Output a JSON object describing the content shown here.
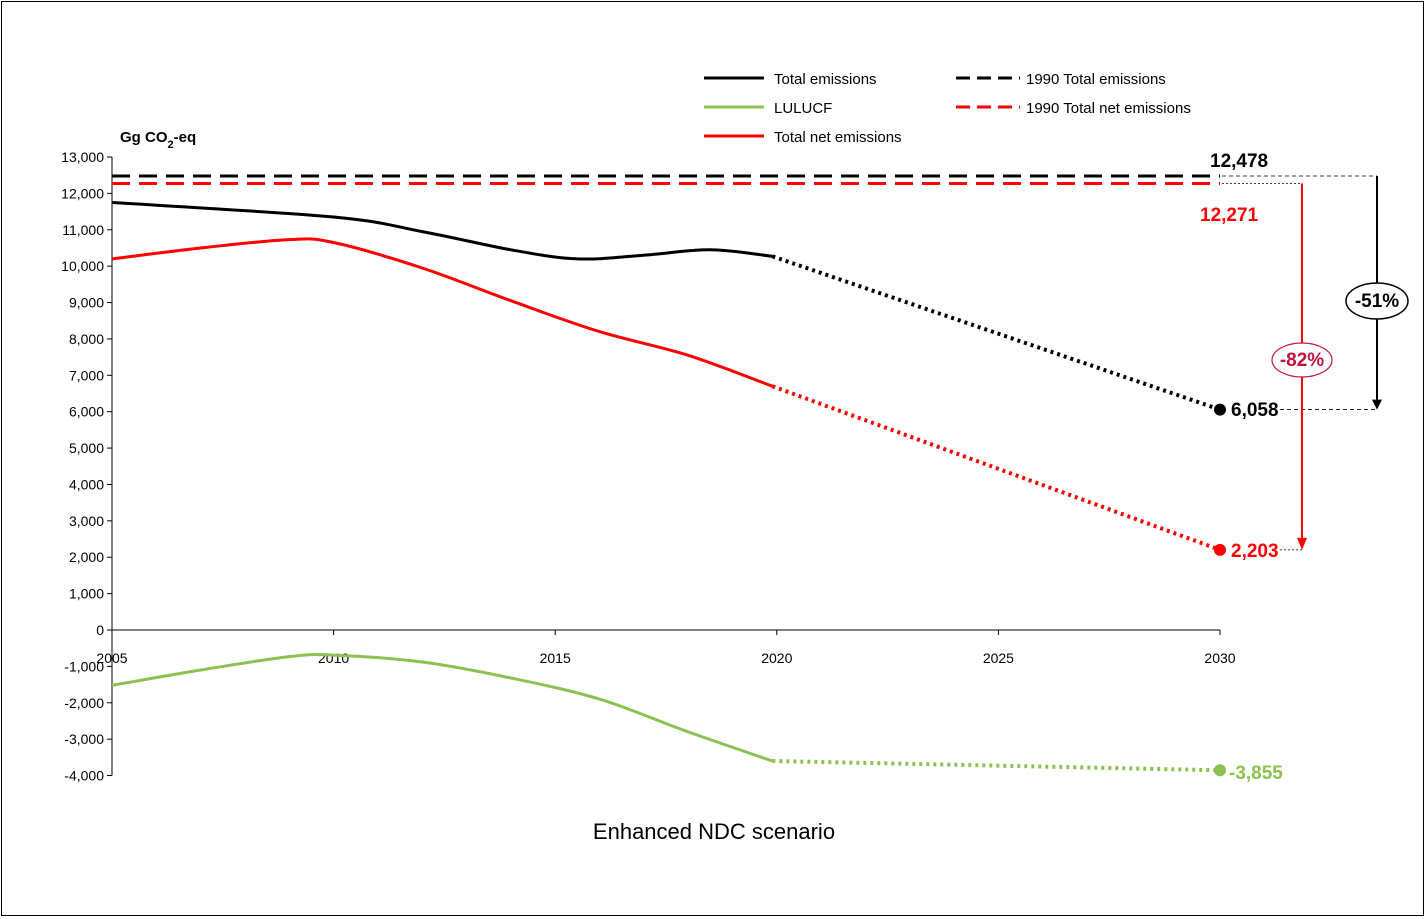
{
  "chart_data": {
    "type": "line",
    "title": "Enhanced NDC scenario",
    "ylabel": "Gg CO₂-eq",
    "ylabel_main": "Gg CO",
    "ylabel_sub": "2",
    "ylabel_suffix": "-eq",
    "ylim": [
      -4000,
      13000
    ],
    "xlim": [
      2005,
      2030
    ],
    "x_ticks": [
      "2005",
      "2010",
      "2015",
      "2020",
      "2025",
      "2030"
    ],
    "y_ticks": [
      "13,000",
      "12,000",
      "11,000",
      "10,000",
      "9,000",
      "8,000",
      "7,000",
      "6,000",
      "5,000",
      "4,000",
      "3,000",
      "2,000",
      "1,000",
      "0",
      "-1,000",
      "-2,000",
      "-3,000",
      "-4,000"
    ],
    "grid": false,
    "legend_position": "top-right",
    "series": [
      {
        "name": "Total emissions",
        "color": "#000000",
        "style": "solid",
        "historical": [
          [
            2005,
            11750
          ],
          [
            2010,
            11350
          ],
          [
            2012,
            10950
          ],
          [
            2014,
            10450
          ],
          [
            2015.5,
            10200
          ],
          [
            2017,
            10300
          ],
          [
            2018.5,
            10450
          ],
          [
            2019.9,
            10270
          ]
        ],
        "projection": [
          [
            2019.9,
            10270
          ],
          [
            2030,
            6058
          ]
        ]
      },
      {
        "name": "LULUCF",
        "color": "#8cc152",
        "style": "solid",
        "historical": [
          [
            2005,
            -1520
          ],
          [
            2007,
            -1100
          ],
          [
            2009,
            -730
          ],
          [
            2010,
            -690
          ],
          [
            2012,
            -880
          ],
          [
            2014,
            -1320
          ],
          [
            2016,
            -1900
          ],
          [
            2018,
            -2800
          ],
          [
            2019.9,
            -3600
          ]
        ],
        "projection": [
          [
            2019.9,
            -3600
          ],
          [
            2030,
            -3855
          ]
        ]
      },
      {
        "name": "Total net emissions",
        "color": "#ff0000",
        "style": "solid",
        "historical": [
          [
            2005,
            10200
          ],
          [
            2007,
            10500
          ],
          [
            2009,
            10730
          ],
          [
            2010,
            10650
          ],
          [
            2012,
            9950
          ],
          [
            2014,
            9050
          ],
          [
            2016,
            8200
          ],
          [
            2018,
            7550
          ],
          [
            2019.9,
            6700
          ]
        ],
        "projection": [
          [
            2019.9,
            6700
          ],
          [
            2030,
            2203
          ]
        ]
      },
      {
        "name": "1990 Total emissions",
        "color": "#000000",
        "style": "dashed",
        "value": 12478
      },
      {
        "name": "1990 Total net emissions",
        "color": "#ff0000",
        "style": "dashed",
        "value": 12271
      }
    ],
    "annotations": {
      "total_1990_label": "12,478",
      "net_1990_label": "12,271",
      "total_2030_label": "6,058",
      "net_2030_label": "2,203",
      "lulucf_2030_label": "-3,855",
      "total_reduction_label": "-51%",
      "net_reduction_label": "-82%"
    },
    "colors": {
      "black": "#000000",
      "red": "#ff0000",
      "crimson": "#c0143c",
      "green": "#8cc152"
    }
  }
}
